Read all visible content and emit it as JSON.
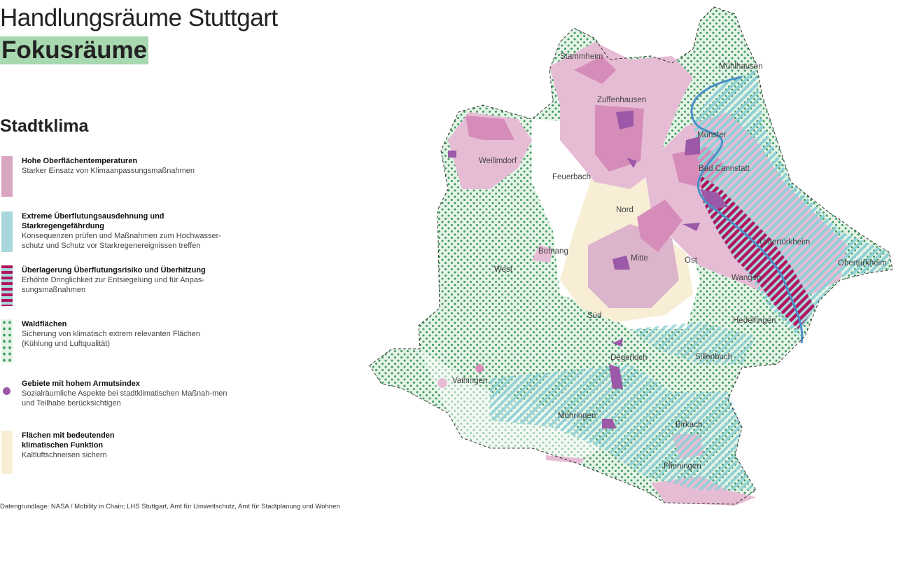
{
  "header": {
    "title": "Handlungsräume Stuttgart",
    "subtitle": "Fokusräume",
    "section": "Stadtklima"
  },
  "legend": [
    {
      "title": "Hohe Oberflächentemperaturen",
      "desc": "Starker Einsatz von Klimaanpassungsmaßnahmen",
      "color": "#d9a6c2"
    },
    {
      "title": "Extreme Überflutungsausdehnung und Starkregengefährdung",
      "desc": "Konsequenzen prüfen und Maßnahmen zum Hochwasser-schutz und Schutz vor Starkregenereignissen treffen",
      "color": "#a8d8dc"
    },
    {
      "title": "Überlagerung Überflutungsrisiko und Überhitzung",
      "desc": "Erhöhte Dringlichkeit zur Entsiegelung und für Anpas-sungsmaßnahmen",
      "color": "#b0155f"
    },
    {
      "title": "Waldflächen",
      "desc": "Sicherung von klimatisch extrem relevanten Flächen (Kühlung und Luftqualität)",
      "color": "#3a9a5a"
    },
    {
      "title": "Gebiete mit hohem Armutsindex",
      "desc": "Sozialräumliche Aspekte bei stadtklimatischen Maßnah-men und Teilhabe berücksichtigen",
      "color": "#9b59a8"
    },
    {
      "title": "Flächen mit bedeutenden klimatischen Funktion",
      "desc": "Kaltluftschneisen sichern",
      "color": "#f7eed5"
    }
  ],
  "source": "Datengrundlage: NASA / Mobility in Chain; LHS Stuttgart, Amt für Umweltschutz, Amt für Stadtplanung und Wohnen",
  "districts": [
    "Stammheim",
    "Mühlhausen",
    "Zuffenhausen",
    "Münster",
    "Weilimdorf",
    "Feuerbach",
    "Bad Cannstatt",
    "Nord",
    "Botnang",
    "West",
    "Mitte",
    "Ost",
    "Untertürkheim",
    "Obertürkheim",
    "Wangen",
    "Süd",
    "Hedelfingen",
    "Degerloch",
    "Sillenbuch",
    "Vaihingen",
    "Möhringen",
    "Birkach",
    "Plieningen"
  ],
  "colors": {
    "river": "#4a90c8",
    "boundary": "#333333"
  }
}
